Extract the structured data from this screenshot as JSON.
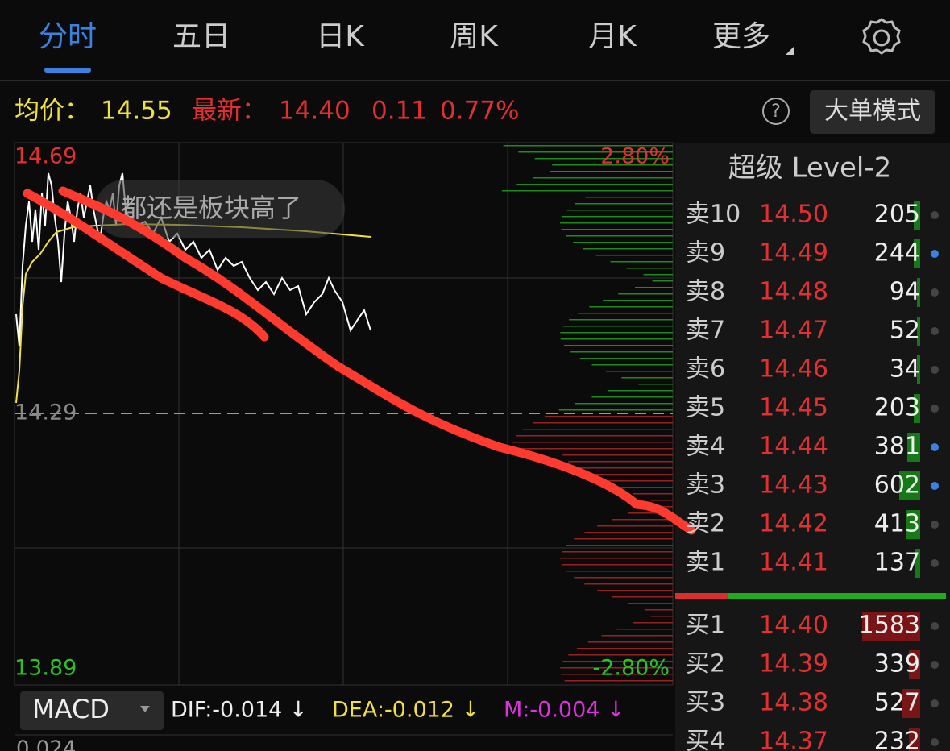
{
  "tabs": [
    "分时",
    "五日",
    "日K",
    "周K",
    "月K",
    "更多"
  ],
  "quote": {
    "avg_label": "均价：",
    "avg": "14.55",
    "latest_label": "最新：",
    "latest": "14.40",
    "change": "0.11",
    "change_pct": "0.77%"
  },
  "button": "大单模式",
  "chart": {
    "price_high": "14.69",
    "price_base": "14.29",
    "price_low": "13.89",
    "pct_high": "2.80%",
    "pct_low": "-2.80%",
    "comment": "都还是板块高了"
  },
  "indicator": {
    "name": "MACD",
    "dif": "DIF:-0.014 ↓",
    "dea": "DEA:-0.012 ↓",
    "m": "M:-0.004 ↓",
    "axis_label": "0.024"
  },
  "order_book": {
    "title": "超级 Level-2",
    "asks": [
      {
        "label": "卖10",
        "price": "14.50",
        "volume": "205"
      },
      {
        "label": "卖9",
        "price": "14.49",
        "volume": "244"
      },
      {
        "label": "卖8",
        "price": "14.48",
        "volume": "94"
      },
      {
        "label": "卖7",
        "price": "14.47",
        "volume": "52"
      },
      {
        "label": "卖6",
        "price": "14.46",
        "volume": "34"
      },
      {
        "label": "卖5",
        "price": "14.45",
        "volume": "203"
      },
      {
        "label": "卖4",
        "price": "14.44",
        "volume": "381"
      },
      {
        "label": "卖3",
        "price": "14.43",
        "volume": "602"
      },
      {
        "label": "卖2",
        "price": "14.42",
        "volume": "413"
      },
      {
        "label": "卖1",
        "price": "14.41",
        "volume": "137"
      }
    ],
    "bids": [
      {
        "label": "买1",
        "price": "14.40",
        "volume": "1583"
      },
      {
        "label": "买2",
        "price": "14.39",
        "volume": "339"
      },
      {
        "label": "买3",
        "price": "14.38",
        "volume": "527"
      },
      {
        "label": "买4",
        "price": "14.37",
        "volume": "232"
      }
    ]
  }
}
